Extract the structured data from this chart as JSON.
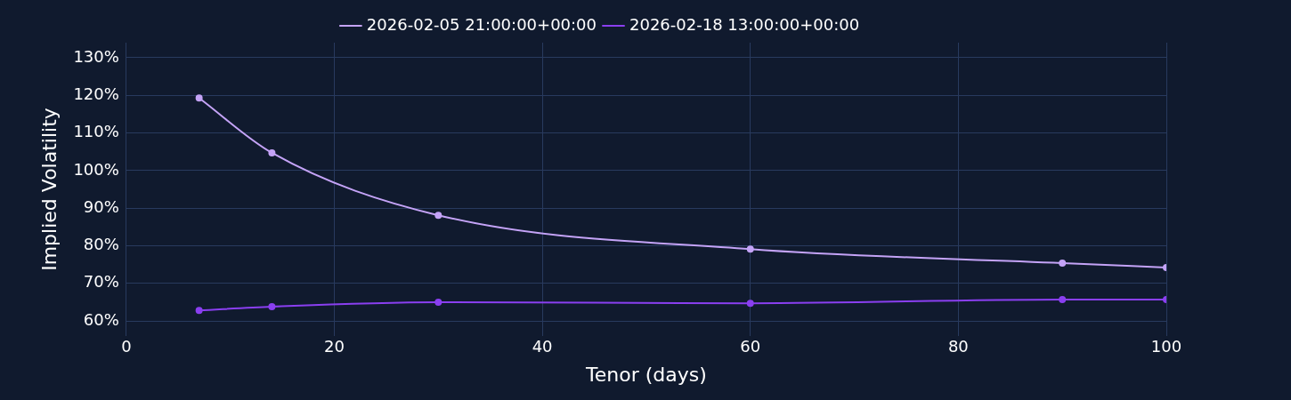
{
  "chart_data": {
    "type": "line",
    "xlabel": "Tenor (days)",
    "ylabel": "Implied Volatility",
    "x": [
      7,
      14,
      30,
      60,
      90,
      100
    ],
    "series": [
      {
        "name": "2026-02-05 21:00:00+00:00",
        "color": "#c4a3f7",
        "values": [
          119.3,
          104.7,
          88.1,
          79.1,
          75.4,
          74.2
        ]
      },
      {
        "name": "2026-02-18 13:00:00+00:00",
        "color": "#8a3ff0",
        "values": [
          62.8,
          63.8,
          65.0,
          64.7,
          65.7,
          65.7
        ]
      }
    ],
    "xlim": [
      0,
      100
    ],
    "xticks": [
      0,
      20,
      40,
      60,
      80,
      100
    ],
    "ylim": [
      56,
      134
    ],
    "yticks": [
      {
        "value": 60,
        "label": "60%"
      },
      {
        "value": 70,
        "label": "70%"
      },
      {
        "value": 80,
        "label": "80%"
      },
      {
        "value": 90,
        "label": "90%"
      },
      {
        "value": 100,
        "label": "100%"
      },
      {
        "value": 110,
        "label": "110%"
      },
      {
        "value": 120,
        "label": "120%"
      },
      {
        "value": 130,
        "label": "130%"
      }
    ],
    "grid": true,
    "legend": "top",
    "marker": "circle",
    "line_style": "solid"
  }
}
